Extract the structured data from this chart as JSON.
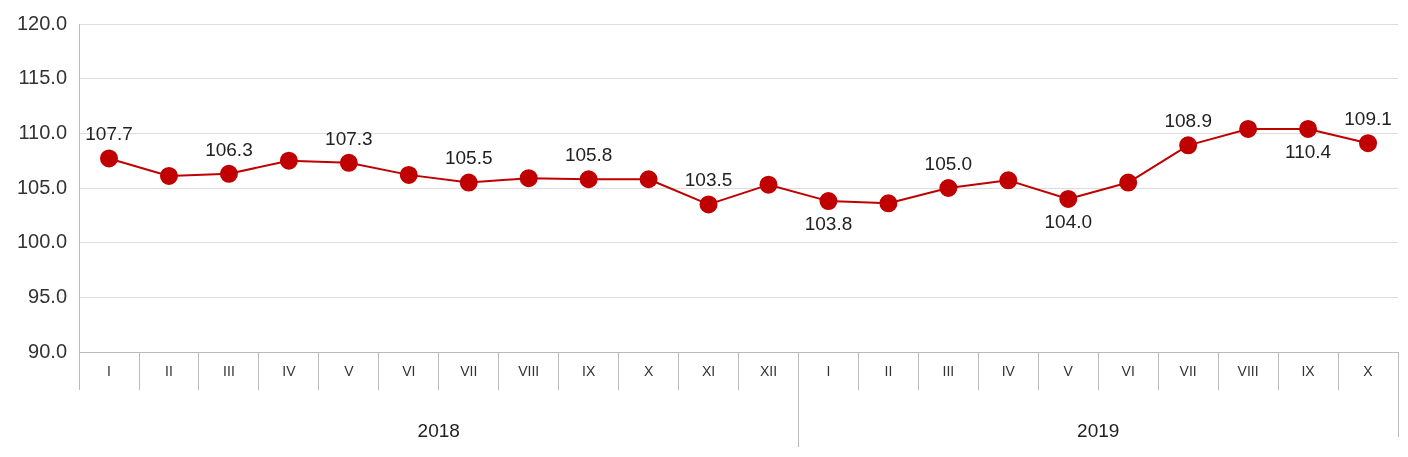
{
  "chart_data": {
    "type": "line",
    "categories": [
      "I",
      "II",
      "III",
      "IV",
      "V",
      "VI",
      "VII",
      "VIII",
      "IX",
      "X",
      "XI",
      "XII",
      "I",
      "II",
      "III",
      "IV",
      "V",
      "VI",
      "VII",
      "VIII",
      "IX",
      "X"
    ],
    "series": [
      {
        "color": "#c00000",
        "values": [
          107.7,
          106.1,
          106.3,
          107.5,
          107.3,
          106.2,
          105.5,
          105.9,
          105.8,
          105.8,
          103.5,
          105.3,
          103.8,
          103.6,
          105.0,
          105.7,
          104.0,
          105.5,
          108.9,
          110.4,
          110.4,
          109.1
        ],
        "value_labels": [
          "107.7",
          null,
          "106.3",
          null,
          "107.3",
          null,
          "105.5",
          null,
          "105.8",
          null,
          "103.5",
          null,
          "103.8",
          null,
          "105.0",
          null,
          "104.0",
          null,
          "108.9",
          null,
          "110.4",
          "109.1"
        ]
      }
    ],
    "ylim": [
      90,
      120
    ],
    "yticks": [
      {
        "value": 90,
        "label": "90.0"
      },
      {
        "value": 95,
        "label": "95.0"
      },
      {
        "value": 100,
        "label": "100.0"
      },
      {
        "value": 105,
        "label": "105.0"
      },
      {
        "value": 110,
        "label": "110.0"
      },
      {
        "value": 115,
        "label": "115.0"
      },
      {
        "value": 120,
        "label": "120.0"
      }
    ],
    "annotations": [
      "2018",
      "2019"
    ],
    "grid": "y",
    "legend": false,
    "marker": "circle",
    "line_style": "solid"
  }
}
